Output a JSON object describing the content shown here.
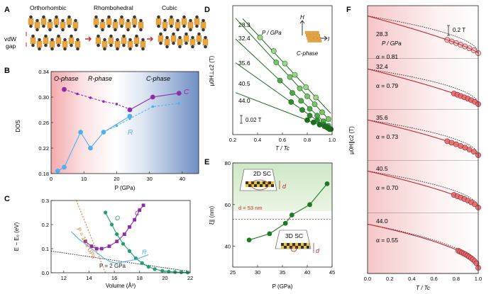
{
  "panels": {
    "A": "A",
    "B": "B",
    "C": "C",
    "D": "D",
    "E": "E",
    "F": "F"
  },
  "panel_a": {
    "phases": [
      "Orthorhombic",
      "Rhombohedral",
      "Cubic"
    ],
    "vdw_label_1": "vdW",
    "vdw_label_2": "gap"
  },
  "colors": {
    "purple": "#8e2ba8",
    "blue": "#4fb0ee",
    "green": "#1f9e74",
    "red": "#c0282f",
    "green_dark": "#1a6e1e",
    "orange": "#e06b1c"
  },
  "chart_data": [
    {
      "panel": "B",
      "type": "line",
      "xlabel": "P (GPa)",
      "ylabel": "DOS",
      "xlim": [
        0,
        45
      ],
      "ylim": [
        0.18,
        0.34
      ],
      "xticks": [
        "0",
        "10",
        "20",
        "30",
        "40"
      ],
      "yticks": [
        "0.18",
        "0.22",
        "0.26",
        "0.30",
        "0.34"
      ],
      "regions": [
        "O-phase",
        "R-phase",
        "C-phase"
      ],
      "series": [
        {
          "name": "C",
          "x": [
            4,
            24,
            31,
            39
          ],
          "y": [
            0.312,
            0.28,
            0.3,
            0.306
          ],
          "dashed_x": [
            4,
            8,
            12,
            16,
            20,
            24
          ],
          "dashed_y": [
            0.312,
            0.305,
            0.299,
            0.293,
            0.289,
            0.281
          ]
        },
        {
          "name": "R",
          "x": [
            2,
            4,
            9,
            12,
            16,
            24
          ],
          "y": [
            0.184,
            0.19,
            0.245,
            0.22,
            0.245,
            0.27
          ],
          "dashed_x": [
            16,
            20,
            24,
            31,
            39
          ],
          "dashed_y": [
            0.245,
            0.255,
            0.266,
            0.285,
            0.29
          ]
        }
      ]
    },
    {
      "panel": "C",
      "type": "line",
      "xlabel": "Volume (Å³)",
      "ylabel": "E − E₀ (eV)",
      "xlim": [
        11,
        22
      ],
      "ylim": [
        0,
        0.3
      ],
      "xticks": [
        "12",
        "14",
        "16",
        "18",
        "20",
        "22"
      ],
      "yticks": [
        "0.0",
        "0.1",
        "0.2",
        "0.3"
      ],
      "annotations": [
        "P = 15.5 GPa",
        "P = 2 GPa"
      ],
      "series": [
        {
          "name": "C",
          "x": [
            13.7,
            14.2,
            14.6,
            15.0,
            15.6,
            16.2,
            16.8,
            17.2,
            17.6,
            18.0,
            18.3
          ],
          "y": [
            0.13,
            0.11,
            0.1,
            0.1,
            0.11,
            0.13,
            0.16,
            0.19,
            0.22,
            0.26,
            0.28
          ]
        },
        {
          "name": "O",
          "x": [
            15.3,
            15.8,
            16.2,
            16.7,
            17.2,
            17.7,
            18.2,
            18.7,
            19.2,
            19.8,
            20.3,
            20.8,
            21.3,
            21.8
          ],
          "y": [
            0.25,
            0.2,
            0.16,
            0.12,
            0.09,
            0.06,
            0.04,
            0.025,
            0.015,
            0.008,
            0.005,
            0.003,
            0.002,
            0.001
          ]
        },
        {
          "name": "R",
          "x": [
            12.6,
            13.2,
            13.7,
            14.2,
            14.7,
            15.2,
            15.7,
            16.2,
            16.7,
            17.2,
            17.7,
            18.2,
            18.7
          ],
          "y": [
            0.17,
            0.14,
            0.12,
            0.1,
            0.08,
            0.06,
            0.045,
            0.04,
            0.045,
            0.05,
            0.055,
            0.065,
            0.075
          ]
        }
      ]
    },
    {
      "panel": "D",
      "type": "scatter",
      "xlabel": "T / Tc",
      "ylabel": "μ0H⊥c2 (T)",
      "xlim": [
        0.2,
        1.0
      ],
      "xticks": [
        "0.2",
        "0.4",
        "0.6",
        "0.8",
        "1.0"
      ],
      "unit_label": "P / GPa",
      "scale_bar": "0.02 T",
      "inset": {
        "H": "H",
        "I": "I",
        "phase": "C-phase"
      },
      "series": [
        {
          "name": "28.3",
          "x": [
            0.42,
            0.53,
            0.62,
            0.7,
            0.79,
            0.87
          ],
          "y": [
            8.2,
            7.0,
            5.9,
            4.9,
            3.8,
            2.9
          ]
        },
        {
          "name": "32.4",
          "x": [
            0.55,
            0.66,
            0.74,
            0.8,
            0.86,
            0.92,
            0.97
          ],
          "y": [
            6.0,
            4.7,
            3.7,
            3.0,
            2.3,
            1.6,
            1.0
          ]
        },
        {
          "name": "35.6",
          "x": [
            0.58,
            0.68,
            0.75,
            0.82,
            0.88,
            0.93,
            0.97
          ],
          "y": [
            4.4,
            3.3,
            2.6,
            1.9,
            1.3,
            0.8,
            0.4
          ]
        },
        {
          "name": "40.5",
          "x": [
            0.67,
            0.76,
            0.82,
            0.88,
            0.93,
            0.96,
            0.98
          ],
          "y": [
            2.5,
            1.8,
            1.3,
            0.9,
            0.5,
            0.3,
            0.1
          ]
        },
        {
          "name": "44.0",
          "x": [
            0.8,
            0.85,
            0.9,
            0.94,
            0.96,
            0.97,
            0.98,
            0.99
          ],
          "y": [
            0.9,
            0.7,
            0.5,
            0.35,
            0.25,
            0.2,
            0.15,
            0.1
          ]
        }
      ]
    },
    {
      "panel": "E",
      "type": "line",
      "xlabel": "P (GPa)",
      "ylabel": "ξ∥ (nm)",
      "xlim": [
        25,
        45
      ],
      "ylim": [
        30,
        80
      ],
      "xticks": [
        "25",
        "30",
        "35",
        "40",
        "45"
      ],
      "yticks": [
        "40",
        "60",
        "80"
      ],
      "annotations": [
        "2D SC",
        "3D SC",
        "d = 53 nm",
        "d"
      ],
      "x": [
        28.3,
        32.4,
        35.6,
        36.9,
        40.5,
        44.0
      ],
      "y": [
        43,
        46,
        51,
        55,
        60,
        70
      ]
    },
    {
      "panel": "F",
      "type": "scatter",
      "xlabel": "T / Tc",
      "ylabel": "μ0H∥c2 (T)",
      "xlim": [
        0,
        1.0
      ],
      "xticks": [
        "0.0",
        "0.2",
        "0.4",
        "0.6",
        "0.8",
        "1.0"
      ],
      "unit_label": "P / GPa",
      "scale_bar": "0.2 T",
      "series": [
        {
          "name": "28.3",
          "alpha": "α = 0.81"
        },
        {
          "name": "32.4",
          "alpha": "α = 0.79"
        },
        {
          "name": "35.6",
          "alpha": "α = 0.73"
        },
        {
          "name": "40.5",
          "alpha": "α = 0.70"
        },
        {
          "name": "44.0",
          "alpha": "α = 0.55"
        }
      ]
    }
  ]
}
